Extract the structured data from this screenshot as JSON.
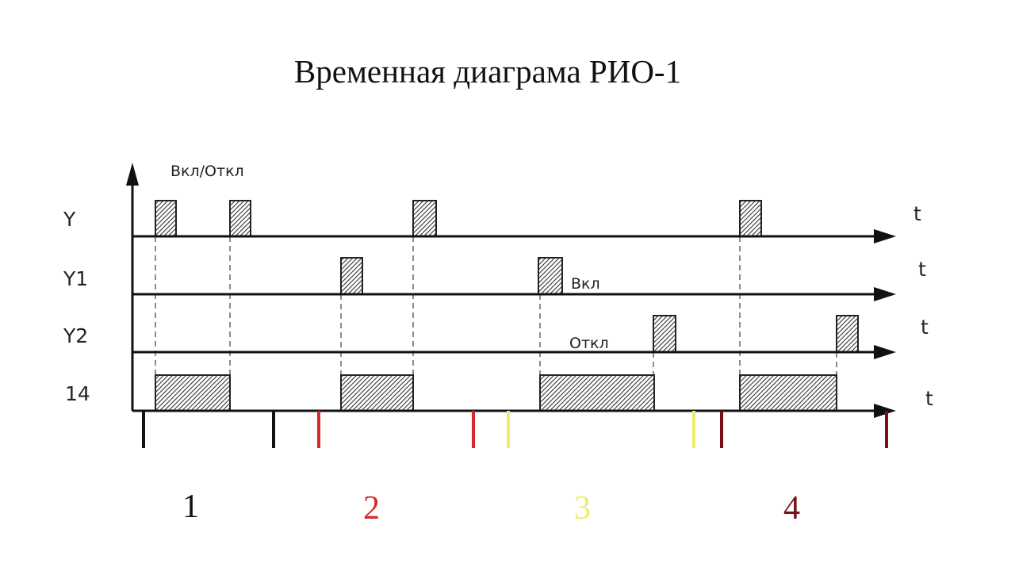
{
  "title": "Временная диаграма РИО-1",
  "y_axis_label": "Вкл/Откл",
  "rows": [
    {
      "label": "Y",
      "axis": "t"
    },
    {
      "label": "Y1",
      "axis": "t"
    },
    {
      "label": "Y2",
      "axis": "t"
    },
    {
      "label": "14",
      "axis": "t"
    }
  ],
  "annotations": {
    "on": "Вкл",
    "off": "Откл"
  },
  "phases": [
    {
      "label": "1",
      "color": "#111111"
    },
    {
      "label": "2",
      "color": "#d42a2a"
    },
    {
      "label": "3",
      "color": "#f0ec70"
    },
    {
      "label": "4",
      "color": "#7a1016"
    }
  ]
}
